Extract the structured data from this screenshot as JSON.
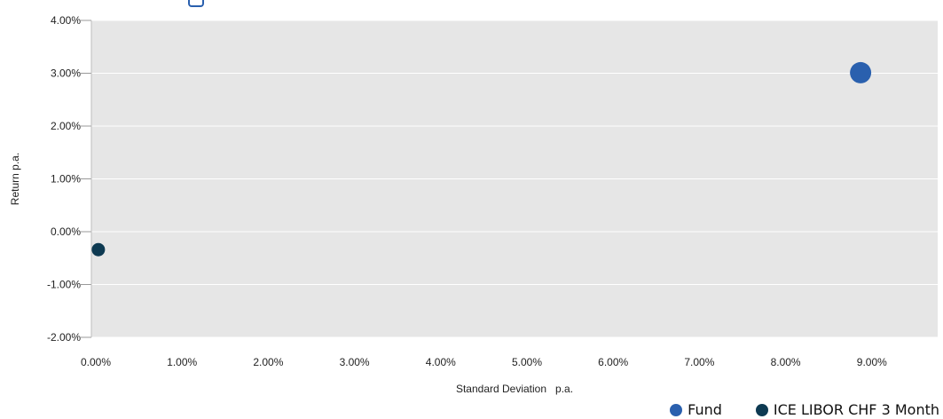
{
  "chart_data": {
    "type": "scatter",
    "xlabel": "Standard Deviation   p.a.",
    "ylabel": "Return p.a.",
    "xlim": [
      0,
      10
    ],
    "ylim": [
      -2,
      4
    ],
    "xticks": [
      "0.00%",
      "1.00%",
      "2.00%",
      "3.00%",
      "4.00%",
      "5.00%",
      "6.00%",
      "7.00%",
      "8.00%",
      "9.00%"
    ],
    "yticks": [
      "4.00%",
      "3.00%",
      "2.00%",
      "1.00%",
      "0.00%",
      "-1.00%",
      "-2.00%"
    ],
    "grid": "horizontal",
    "legend_position": "bottom-right",
    "series": [
      {
        "name": "Fund",
        "color": "#2a60ae",
        "x": 8.89,
        "y": 3.01
      },
      {
        "name": "ICE LIBOR CHF 3 Month",
        "color": "#0e3a52",
        "x": 0.05,
        "y": -0.34
      }
    ]
  }
}
